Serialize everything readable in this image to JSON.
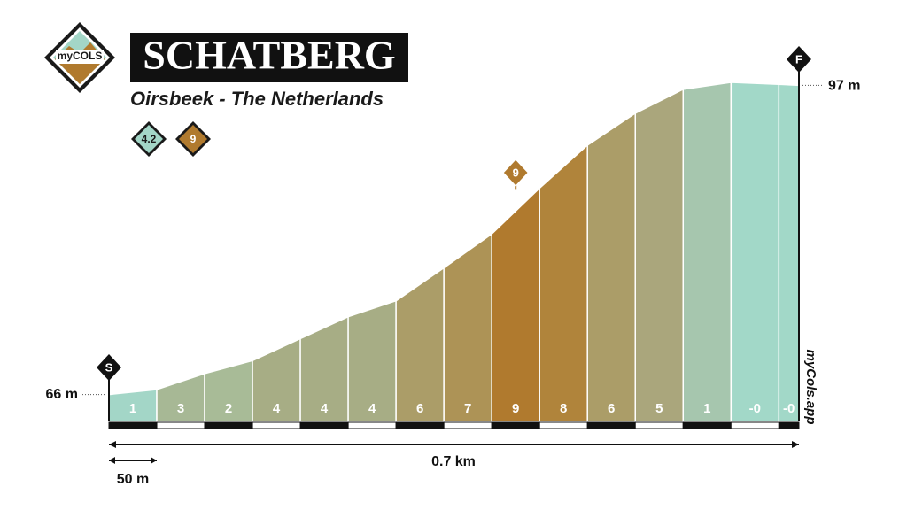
{
  "chart_data": {
    "type": "profile",
    "title": "SCHATBERG",
    "subtitle": "Oirsbeek - The Netherlands",
    "logo": "myCOLS",
    "badges": [
      "4.2",
      "9"
    ],
    "start_flag": "S",
    "finish_flag": "F",
    "start_label": "66 m",
    "finish_label": "97 m",
    "distance_label": "0.7 km",
    "scale_label": "50 m",
    "peak_marker": "9",
    "credit": "myCols.app",
    "distances": [
      0,
      50,
      100,
      150,
      200,
      250,
      300,
      350,
      400,
      450,
      500,
      550,
      600,
      650,
      700,
      721
    ],
    "elevations": [
      66,
      66.5,
      68.1,
      69.4,
      71.6,
      73.8,
      75.4,
      78.7,
      82.1,
      86.7,
      91.0,
      94.2,
      96.6,
      97.3,
      97.1,
      97
    ],
    "gradients": [
      1,
      3,
      2,
      4,
      4,
      4,
      6,
      7,
      9,
      8,
      6,
      5,
      1,
      0,
      0
    ],
    "gradient_labels": [
      "1",
      "3",
      "2",
      "4",
      "4",
      "4",
      "6",
      "7",
      "9",
      "8",
      "6",
      "5",
      "1",
      "-0",
      "-0"
    ],
    "segment_colors": [
      "#a3d6c7",
      "#a7b895",
      "#a8bb97",
      "#a7ad85",
      "#a7ad85",
      "#a7ad85",
      "#ab9d68",
      "#ad9356",
      "#b07a2e",
      "#b0843b",
      "#ab9d68",
      "#aaa67c",
      "#a6c6ae",
      "#a2d8c8",
      "#a2d8c8"
    ],
    "xlim": [
      0,
      721
    ],
    "ylim": [
      63.3,
      97.3
    ]
  }
}
